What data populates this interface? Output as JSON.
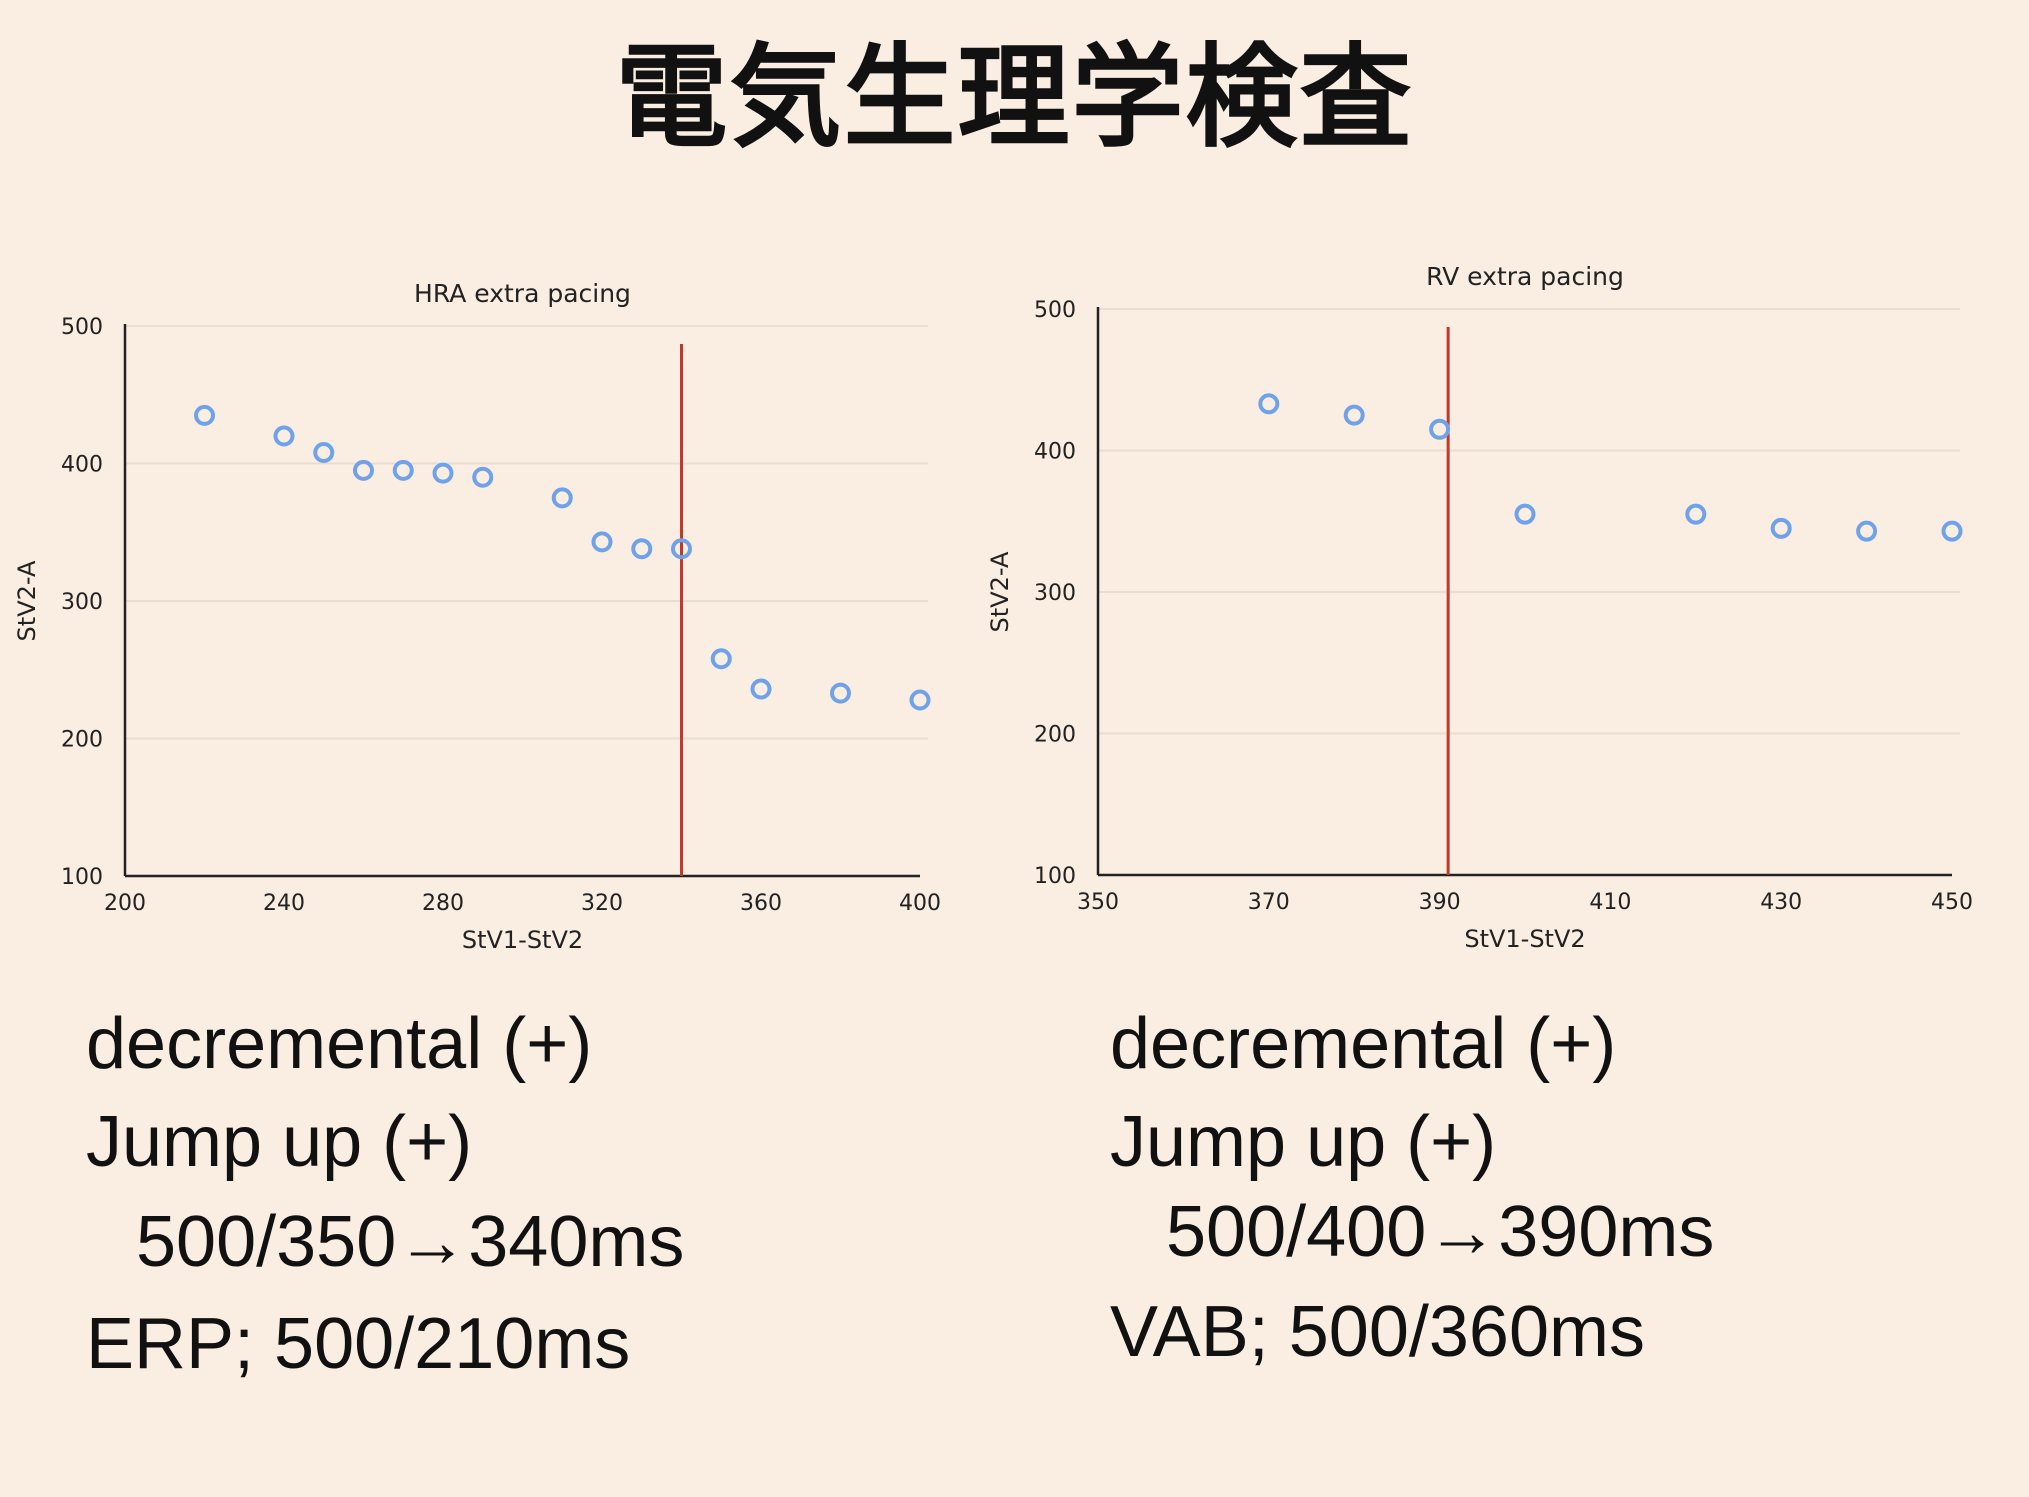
{
  "title": "電気生理学検査",
  "colors": {
    "background": "#faede2",
    "marker": "#6fa2ea",
    "reference_line": "#c0392b",
    "axis": "#222222",
    "grid": "#e9ddd2"
  },
  "chart_data": [
    {
      "type": "scatter",
      "title": "HRA extra pacing",
      "xlabel": "StV1-StV2",
      "ylabel": "StV2-A",
      "xlim": [
        200,
        400
      ],
      "ylim": [
        100,
        500
      ],
      "xticks": [
        200,
        240,
        280,
        320,
        360,
        400
      ],
      "yticks": [
        100,
        200,
        300,
        400,
        500
      ],
      "grid": "horizontal",
      "marker": "hollow-circle",
      "x": [
        220,
        240,
        250,
        260,
        270,
        280,
        290,
        310,
        320,
        330,
        340,
        350,
        360,
        380,
        400
      ],
      "y": [
        435,
        420,
        408,
        395,
        395,
        393,
        390,
        375,
        343,
        338,
        338,
        258,
        236,
        233,
        228
      ],
      "reference_line_x": 340
    },
    {
      "type": "scatter",
      "title": "RV extra pacing",
      "xlabel": "StV1-StV2",
      "ylabel": "StV2-A",
      "xlim": [
        350,
        450
      ],
      "ylim": [
        100,
        500
      ],
      "xticks": [
        350,
        370,
        390,
        410,
        430,
        450
      ],
      "yticks": [
        100,
        200,
        300,
        400,
        500
      ],
      "grid": "horizontal",
      "marker": "hollow-circle",
      "x": [
        370,
        380,
        390,
        400,
        420,
        430,
        440,
        450
      ],
      "y": [
        433,
        425,
        415,
        355,
        355,
        345,
        343,
        343
      ],
      "reference_line_x": 391
    }
  ],
  "notes": {
    "left": [
      "decremental (+)",
      "Jump up (+)",
      "500/350→340ms",
      "ERP; 500/210ms"
    ],
    "right": [
      "decremental (+)",
      "Jump up (+)",
      "500/400→390ms",
      "VAB; 500/360ms"
    ]
  }
}
